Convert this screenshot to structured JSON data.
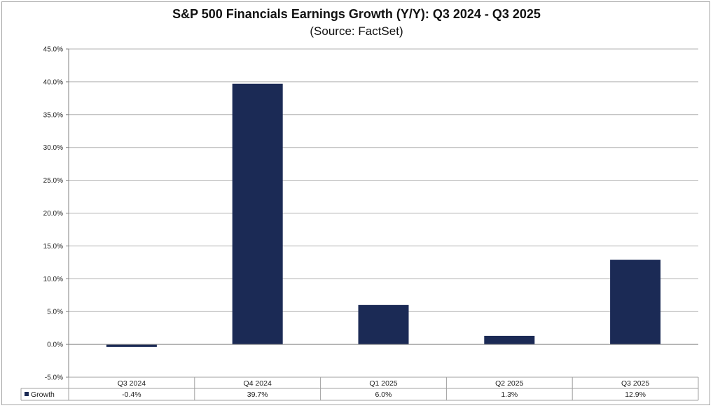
{
  "chart_data": {
    "type": "bar",
    "title": "S&P 500 Financials Earnings Growth (Y/Y): Q3 2024 - Q3 2025",
    "subtitle": "(Source: FactSet)",
    "categories": [
      "Q3 2024",
      "Q4 2024",
      "Q1 2025",
      "Q2 2025",
      "Q3 2025"
    ],
    "series": [
      {
        "name": "Growth",
        "values": [
          -0.4,
          39.7,
          6.0,
          1.3,
          12.9
        ],
        "labels": [
          "-0.4%",
          "39.7%",
          "6.0%",
          "1.3%",
          "12.9%"
        ],
        "color": "#1b2a55"
      }
    ],
    "yticks": [
      "45.0%",
      "40.0%",
      "35.0%",
      "30.0%",
      "25.0%",
      "20.0%",
      "15.0%",
      "10.0%",
      "5.0%",
      "0.0%",
      "-5.0%"
    ],
    "ylim": [
      -5,
      45
    ],
    "grid": true,
    "legend": "data-table"
  }
}
